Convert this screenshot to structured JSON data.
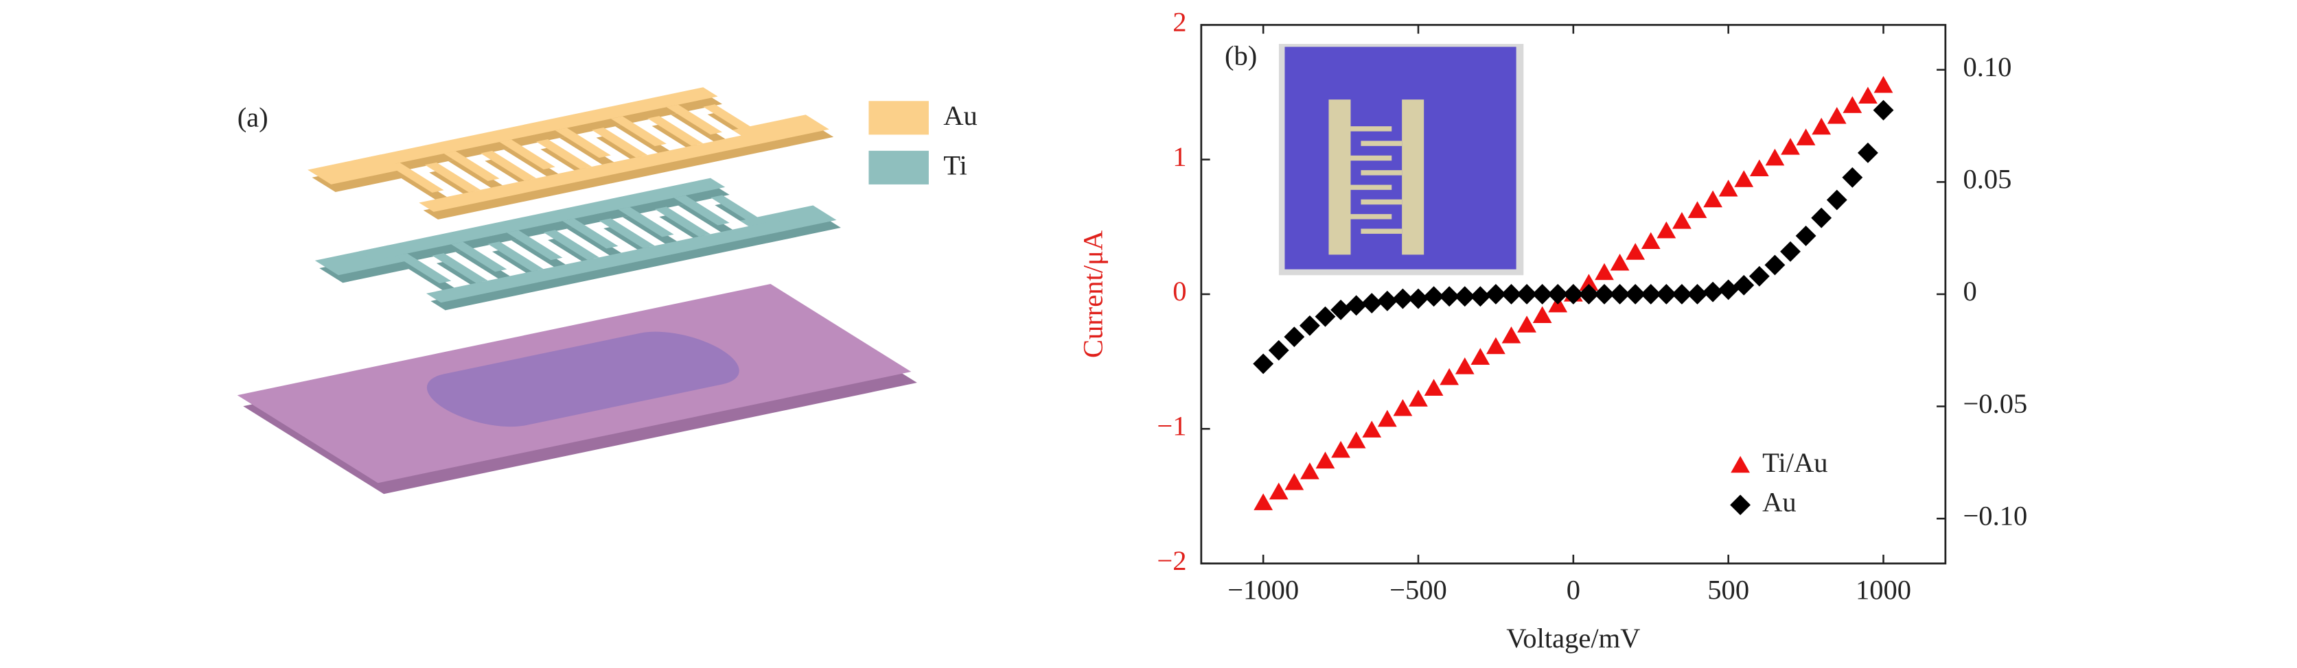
{
  "panel_a": {
    "label": "(a)",
    "legend": [
      {
        "name": "Au",
        "color": "#fbd08a"
      },
      {
        "name": "Ti",
        "color": "#8fbfbe"
      }
    ]
  },
  "chart_data": {
    "type": "scatter",
    "panel_label": "(b)",
    "xlabel": "Voltage/mV",
    "ylabel": "Current/μA",
    "xlim": [
      -1200,
      1200
    ],
    "ylim": [
      -2,
      2
    ],
    "y2lim": [
      -0.12,
      0.12
    ],
    "xticks": [
      {
        "value": -1000,
        "label": "−1000"
      },
      {
        "value": -500,
        "label": "−500"
      },
      0,
      500,
      1000
    ],
    "yticks": [
      {
        "value": -2,
        "label": "−2"
      },
      {
        "value": -1,
        "label": "−1"
      },
      0,
      1,
      2
    ],
    "y2ticks": [
      {
        "value": -0.1,
        "label": "−0.10"
      },
      {
        "value": -0.05,
        "label": "−0.05"
      },
      0,
      {
        "value": 0.05,
        "label": "0.05"
      },
      {
        "value": 0.1,
        "label": "0.10"
      }
    ],
    "ylabel_color": "#e0201b",
    "legend": "lower right",
    "x": [
      -1000,
      -950,
      -900,
      -850,
      -800,
      -750,
      -700,
      -650,
      -600,
      -550,
      -500,
      -450,
      -400,
      -350,
      -300,
      -250,
      -200,
      -150,
      -100,
      -50,
      0,
      50,
      100,
      150,
      200,
      250,
      300,
      350,
      400,
      450,
      500,
      550,
      600,
      650,
      700,
      750,
      800,
      850,
      900,
      950,
      1000
    ],
    "series": [
      {
        "name": "Ti/Au",
        "color": "#ee1111",
        "marker": "triangle",
        "axis": "y",
        "values": [
          -1.55,
          -1.47,
          -1.4,
          -1.32,
          -1.24,
          -1.16,
          -1.09,
          -1.01,
          -0.93,
          -0.85,
          -0.78,
          -0.7,
          -0.62,
          -0.54,
          -0.47,
          -0.39,
          -0.31,
          -0.23,
          -0.16,
          -0.08,
          0,
          0.08,
          0.16,
          0.23,
          0.31,
          0.39,
          0.47,
          0.54,
          0.62,
          0.7,
          0.78,
          0.85,
          0.93,
          1.01,
          1.09,
          1.16,
          1.24,
          1.32,
          1.4,
          1.47,
          1.55
        ]
      },
      {
        "name": "Au",
        "color": "#000000",
        "marker": "diamond",
        "axis": "y2",
        "values": [
          -0.031,
          -0.025,
          -0.019,
          -0.014,
          -0.01,
          -0.007,
          -0.005,
          -0.004,
          -0.003,
          -0.002,
          -0.002,
          -0.001,
          -0.001,
          -0.001,
          -0.001,
          0,
          0,
          0,
          0,
          0,
          0,
          0,
          0,
          0,
          0,
          0,
          0,
          0,
          0,
          0.001,
          0.002,
          0.004,
          0.008,
          0.013,
          0.019,
          0.026,
          0.034,
          0.042,
          0.052,
          0.063,
          0.082
        ]
      }
    ]
  }
}
